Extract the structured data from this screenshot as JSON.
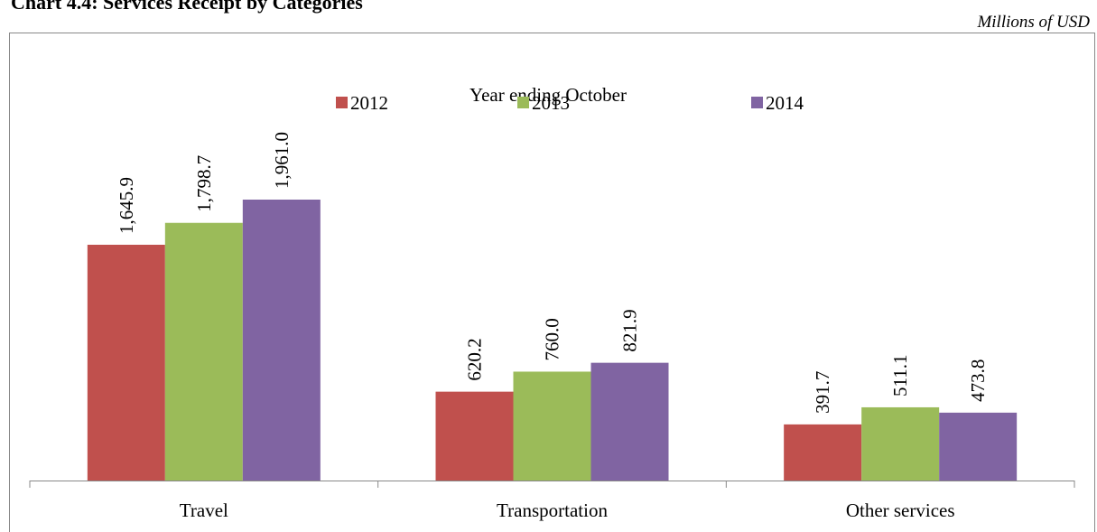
{
  "chart_data": {
    "type": "bar",
    "title": "Chart 4.4: Services Receipt by Categories",
    "subtitle": "Millions of USD",
    "legend_title": "Year ending October",
    "categories": [
      "Travel",
      "Transportation",
      "Other services"
    ],
    "series": [
      {
        "name": "2012",
        "color": "#c0504d",
        "values": [
          1645.9,
          620.2,
          391.7
        ],
        "value_labels": [
          "1,645.9",
          "620.2",
          "391.7"
        ]
      },
      {
        "name": "2013",
        "color": "#9bbb59",
        "values": [
          1798.7,
          760.0,
          511.1
        ],
        "value_labels": [
          "1,798.7",
          "760.0",
          "511.1"
        ]
      },
      {
        "name": "2014",
        "color": "#8064a2",
        "values": [
          1961.0,
          821.9,
          473.8
        ],
        "value_labels": [
          "1,961.0",
          "821.9",
          "473.8"
        ]
      }
    ],
    "legend": "top"
  }
}
